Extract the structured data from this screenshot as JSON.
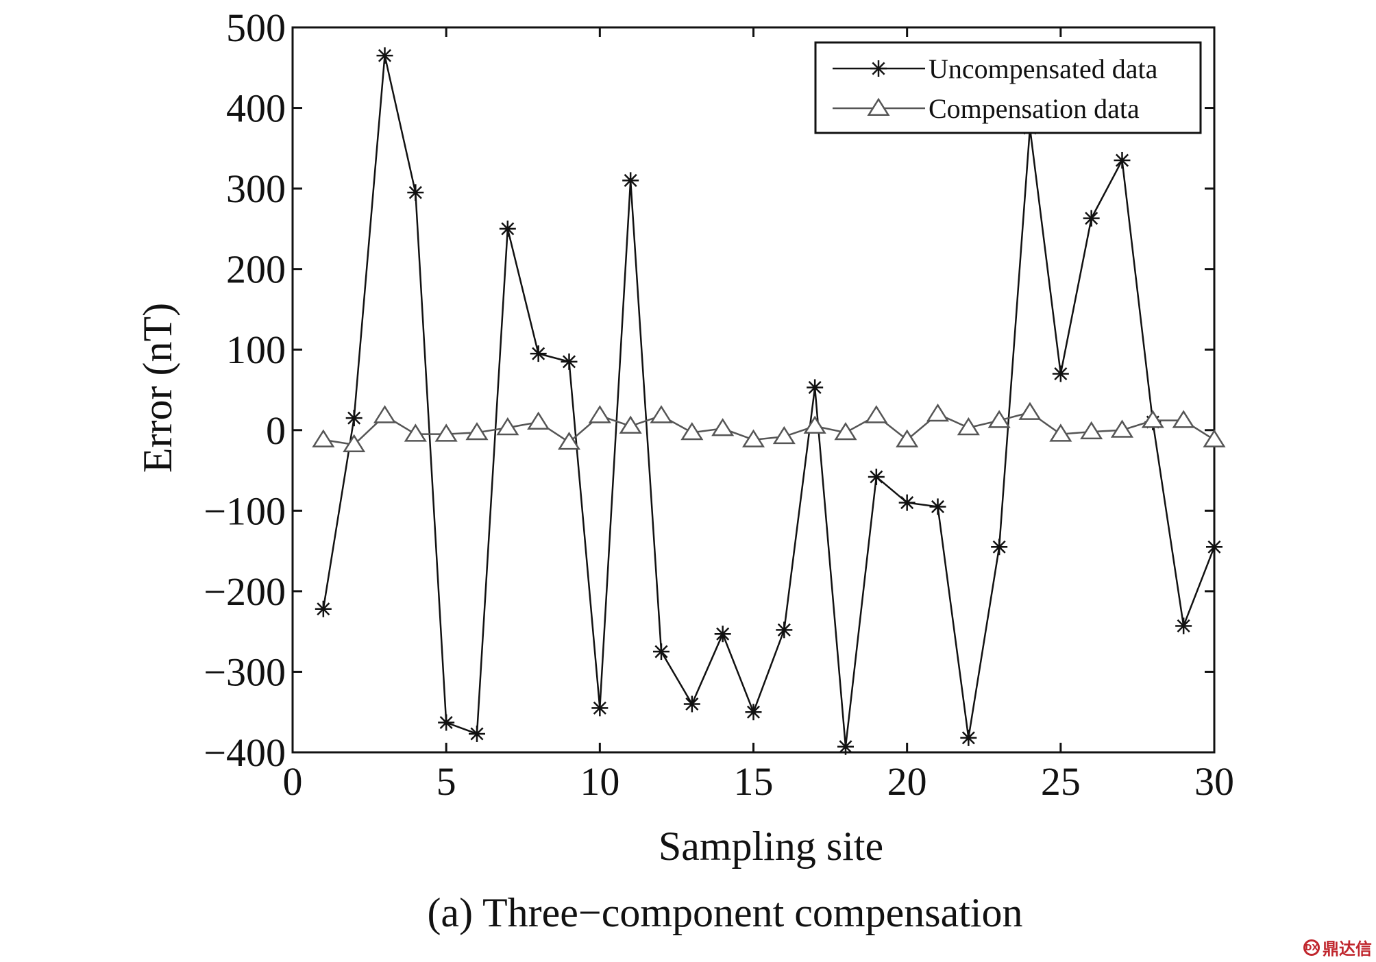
{
  "chart_data": {
    "type": "line",
    "xlabel": "Sampling site",
    "ylabel": "Error (nT)",
    "caption": "(a)  Three−component compensation",
    "xlim": [
      0,
      30
    ],
    "ylim": [
      -400,
      500
    ],
    "xticks": [
      0,
      5,
      10,
      15,
      20,
      25,
      30
    ],
    "yticks": [
      -400,
      -300,
      -200,
      -100,
      0,
      100,
      200,
      300,
      400,
      500
    ],
    "ytick_labels": [
      "−400",
      "−300",
      "−200",
      "−100",
      "0",
      "100",
      "200",
      "300",
      "400",
      "500"
    ],
    "grid": false,
    "legend_position": "top-right",
    "x": [
      1,
      2,
      3,
      4,
      5,
      6,
      7,
      8,
      9,
      10,
      11,
      12,
      13,
      14,
      15,
      16,
      17,
      18,
      19,
      20,
      21,
      22,
      23,
      24,
      25,
      26,
      27,
      28,
      29,
      30
    ],
    "series": [
      {
        "name": "Uncompensated data",
        "marker": "asterisk",
        "color": "#111111",
        "values": [
          -222,
          15,
          465,
          295,
          -363,
          -377,
          250,
          95,
          85,
          -345,
          310,
          -275,
          -340,
          -253,
          -350,
          -248,
          53,
          -393,
          -58,
          -90,
          -95,
          -382,
          -145,
          375,
          70,
          263,
          335,
          10,
          -243,
          -145
        ]
      },
      {
        "name": "Compensation data",
        "marker": "triangle",
        "color": "#555555",
        "values": [
          -12,
          -18,
          18,
          -5,
          -5,
          -3,
          3,
          10,
          -15,
          18,
          5,
          18,
          -3,
          2,
          -12,
          -8,
          5,
          -3,
          18,
          -12,
          20,
          3,
          12,
          22,
          -5,
          -2,
          0,
          12,
          12,
          -12
        ]
      }
    ]
  },
  "watermark": {
    "logo": "DX",
    "text": "鼎达信"
  }
}
